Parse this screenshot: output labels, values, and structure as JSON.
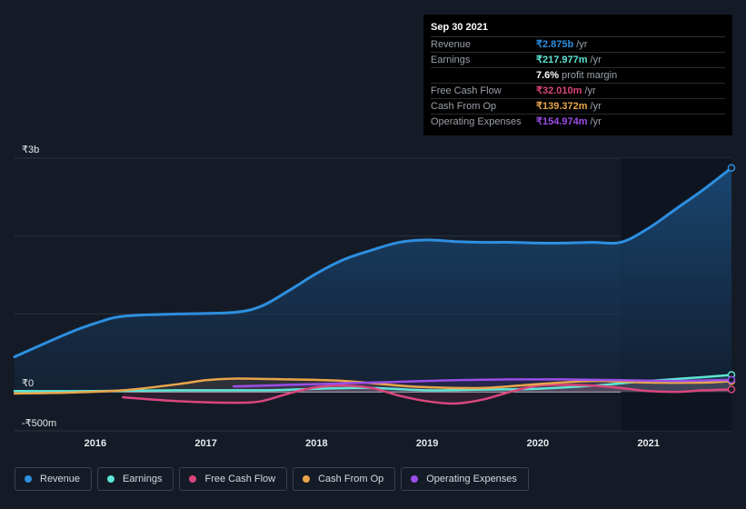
{
  "tooltip": {
    "date": "Sep 30 2021",
    "rows": [
      {
        "label": "Revenue",
        "value": "₹2.875b",
        "unit": "/yr",
        "color": "#2d8fe0"
      },
      {
        "label": "Earnings",
        "value": "₹217.977m",
        "unit": "/yr",
        "color": "#5ee6d6"
      },
      {
        "label": "",
        "value": "7.6%",
        "unit": "profit margin",
        "color": "#ffffff"
      },
      {
        "label": "Free Cash Flow",
        "value": "₹32.010m",
        "unit": "/yr",
        "color": "#d9467c"
      },
      {
        "label": "Cash From Op",
        "value": "₹139.372m",
        "unit": "/yr",
        "color": "#e8a54b"
      },
      {
        "label": "Operating Expenses",
        "value": "₹154.974m",
        "unit": "/yr",
        "color": "#9b4ee8"
      }
    ]
  },
  "legend": [
    {
      "label": "Revenue",
      "color": "#2d8fe0"
    },
    {
      "label": "Earnings",
      "color": "#5ee6d6"
    },
    {
      "label": "Free Cash Flow",
      "color": "#d9467c"
    },
    {
      "label": "Cash From Op",
      "color": "#e8a54b"
    },
    {
      "label": "Operating Expenses",
      "color": "#9b4ee8"
    }
  ],
  "chart_data": {
    "type": "area",
    "y_tick_labels": [
      "₹3b",
      "₹0",
      "-₹500m"
    ],
    "x_tick_labels": [
      "2016",
      "2017",
      "2018",
      "2019",
      "2020",
      "2021"
    ],
    "ylim": [
      -0.5,
      3.0
    ],
    "xlim": [
      2015.27,
      2021.75
    ],
    "grid": true,
    "highlight_start": 2020.75,
    "series": [
      {
        "name": "Revenue",
        "color": "#2d8fe0",
        "x": [
          2015.27,
          2015.75,
          2016.0,
          2016.25,
          2016.75,
          2017.25,
          2017.5,
          2017.75,
          2018.0,
          2018.25,
          2018.5,
          2018.75,
          2019.0,
          2019.25,
          2019.5,
          2019.75,
          2020.0,
          2020.25,
          2020.5,
          2020.75,
          2021.0,
          2021.25,
          2021.5,
          2021.75
        ],
        "y": [
          0.45,
          0.75,
          0.88,
          0.97,
          1.0,
          1.02,
          1.1,
          1.3,
          1.52,
          1.7,
          1.82,
          1.92,
          1.95,
          1.93,
          1.92,
          1.92,
          1.91,
          1.91,
          1.92,
          1.92,
          2.1,
          2.35,
          2.6,
          2.875
        ]
      },
      {
        "name": "Earnings",
        "color": "#5ee6d6",
        "x": [
          2015.27,
          2016.0,
          2016.75,
          2017.5,
          2018.0,
          2018.5,
          2019.0,
          2019.5,
          2020.0,
          2020.5,
          2021.0,
          2021.5,
          2021.75
        ],
        "y": [
          0.01,
          0.01,
          0.02,
          0.02,
          0.04,
          0.05,
          0.02,
          0.03,
          0.04,
          0.08,
          0.14,
          0.19,
          0.218
        ]
      },
      {
        "name": "Free Cash Flow",
        "color": "#d9467c",
        "x": [
          2016.25,
          2016.75,
          2017.25,
          2017.5,
          2017.75,
          2018.0,
          2018.25,
          2018.5,
          2018.75,
          2019.0,
          2019.25,
          2019.5,
          2019.75,
          2020.0,
          2020.25,
          2020.5,
          2020.75,
          2021.0,
          2021.25,
          2021.5,
          2021.75
        ],
        "y": [
          -0.07,
          -0.12,
          -0.14,
          -0.12,
          -0.02,
          0.06,
          0.08,
          0.05,
          -0.05,
          -0.12,
          -0.15,
          -0.1,
          0.0,
          0.08,
          0.09,
          0.08,
          0.05,
          0.01,
          0.0,
          0.02,
          0.032
        ]
      },
      {
        "name": "Cash From Op",
        "color": "#e8a54b",
        "x": [
          2015.27,
          2015.75,
          2016.25,
          2016.75,
          2017.0,
          2017.25,
          2017.75,
          2018.25,
          2018.75,
          2019.0,
          2019.5,
          2020.0,
          2020.5,
          2021.0,
          2021.5,
          2021.75
        ],
        "y": [
          -0.02,
          -0.01,
          0.02,
          0.1,
          0.15,
          0.17,
          0.16,
          0.14,
          0.08,
          0.06,
          0.05,
          0.1,
          0.14,
          0.12,
          0.12,
          0.139
        ]
      },
      {
        "name": "Operating Expenses",
        "color": "#9b4ee8",
        "x": [
          2017.25,
          2017.75,
          2018.25,
          2018.75,
          2019.25,
          2019.75,
          2020.25,
          2020.75,
          2021.25,
          2021.75
        ],
        "y": [
          0.07,
          0.09,
          0.11,
          0.13,
          0.15,
          0.16,
          0.16,
          0.15,
          0.14,
          0.155
        ]
      }
    ]
  }
}
